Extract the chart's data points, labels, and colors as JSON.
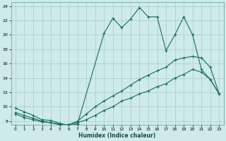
{
  "xlabel": "Humidex (Indice chaleur)",
  "bg_color": "#ceeaea",
  "grid_color": "#aed0d0",
  "line_color": "#1a6b5e",
  "xlim": [
    -0.5,
    23.5
  ],
  "ylim": [
    7.5,
    24.5
  ],
  "xticks": [
    0,
    1,
    2,
    3,
    4,
    5,
    6,
    7,
    8,
    9,
    10,
    11,
    12,
    13,
    14,
    15,
    16,
    17,
    18,
    19,
    20,
    21,
    22,
    23
  ],
  "yticks": [
    8,
    10,
    12,
    14,
    16,
    18,
    20,
    22,
    24
  ],
  "series1_x": [
    0,
    1,
    2,
    3,
    4,
    5,
    6,
    7,
    10,
    11,
    12,
    13,
    14,
    15,
    16,
    17,
    18,
    19,
    20,
    21,
    22,
    23
  ],
  "series1_y": [
    9.8,
    9.3,
    8.8,
    8.2,
    8.1,
    7.7,
    7.4,
    7.6,
    20.2,
    22.3,
    21.0,
    22.2,
    23.8,
    22.5,
    22.5,
    17.8,
    20.0,
    22.5,
    20.0,
    15.2,
    13.8,
    11.8
  ],
  "series2_x": [
    0,
    1,
    2,
    3,
    4,
    5,
    6,
    7,
    8,
    9,
    10,
    11,
    12,
    13,
    14,
    15,
    16,
    17,
    18,
    19,
    20,
    21,
    22,
    23
  ],
  "series2_y": [
    9.2,
    8.8,
    8.4,
    8.0,
    7.8,
    7.5,
    7.5,
    8.0,
    9.0,
    10.0,
    10.8,
    11.5,
    12.2,
    13.0,
    13.8,
    14.4,
    15.0,
    15.5,
    16.5,
    16.8,
    17.0,
    16.8,
    15.5,
    11.8
  ],
  "series3_x": [
    0,
    1,
    2,
    3,
    4,
    5,
    6,
    7,
    8,
    9,
    10,
    11,
    12,
    13,
    14,
    15,
    16,
    17,
    18,
    19,
    20,
    21,
    22,
    23
  ],
  "series3_y": [
    9.0,
    8.5,
    8.2,
    7.9,
    7.8,
    7.6,
    7.5,
    7.8,
    8.2,
    8.8,
    9.5,
    10.0,
    10.8,
    11.2,
    11.8,
    12.2,
    12.8,
    13.2,
    14.0,
    14.5,
    15.2,
    14.8,
    13.8,
    11.8
  ]
}
